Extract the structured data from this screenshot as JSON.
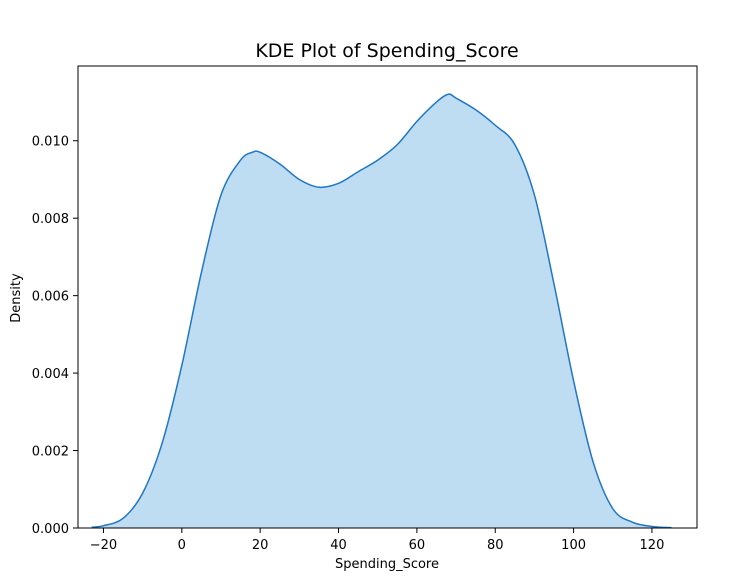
{
  "chart_data": {
    "type": "area",
    "title": "KDE Plot of Spending_Score",
    "xlabel": "Spending_Score",
    "ylabel": "Density",
    "xlim": [
      -26.5,
      131.5
    ],
    "ylim": [
      0,
      0.01193
    ],
    "xticks": [
      -20,
      0,
      20,
      40,
      60,
      80,
      100,
      120
    ],
    "xtick_labels": [
      "−20",
      "0",
      "20",
      "40",
      "60",
      "80",
      "100",
      "120"
    ],
    "yticks": [
      0,
      0.002,
      0.004,
      0.006,
      0.008,
      0.01
    ],
    "ytick_labels": [
      "0.000",
      "0.002",
      "0.004",
      "0.006",
      "0.008",
      "0.010"
    ],
    "grid": false,
    "legend": "none",
    "colors": {
      "line": "#1f77c4",
      "fill": "#bedcf2"
    },
    "series": [
      {
        "x": [
          -23,
          -20,
          -15,
          -10,
          -5,
          0,
          5,
          10,
          15,
          18,
          20,
          25,
          30,
          35,
          40,
          45,
          50,
          55,
          60,
          65,
          68,
          70,
          75,
          80,
          85,
          90,
          95,
          100,
          105,
          110,
          115,
          120,
          125
        ],
        "values": [
          2e-05,
          6e-05,
          0.00025,
          0.0009,
          0.0022,
          0.0042,
          0.0066,
          0.0086,
          0.0095,
          0.0097,
          0.0097,
          0.0094,
          0.009,
          0.0088,
          0.0089,
          0.0092,
          0.0095,
          0.0099,
          0.0105,
          0.011,
          0.0112,
          0.0111,
          0.0108,
          0.0104,
          0.0099,
          0.0086,
          0.0063,
          0.0038,
          0.0017,
          0.0005,
          0.00015,
          4e-05,
          1e-05
        ]
      }
    ]
  }
}
